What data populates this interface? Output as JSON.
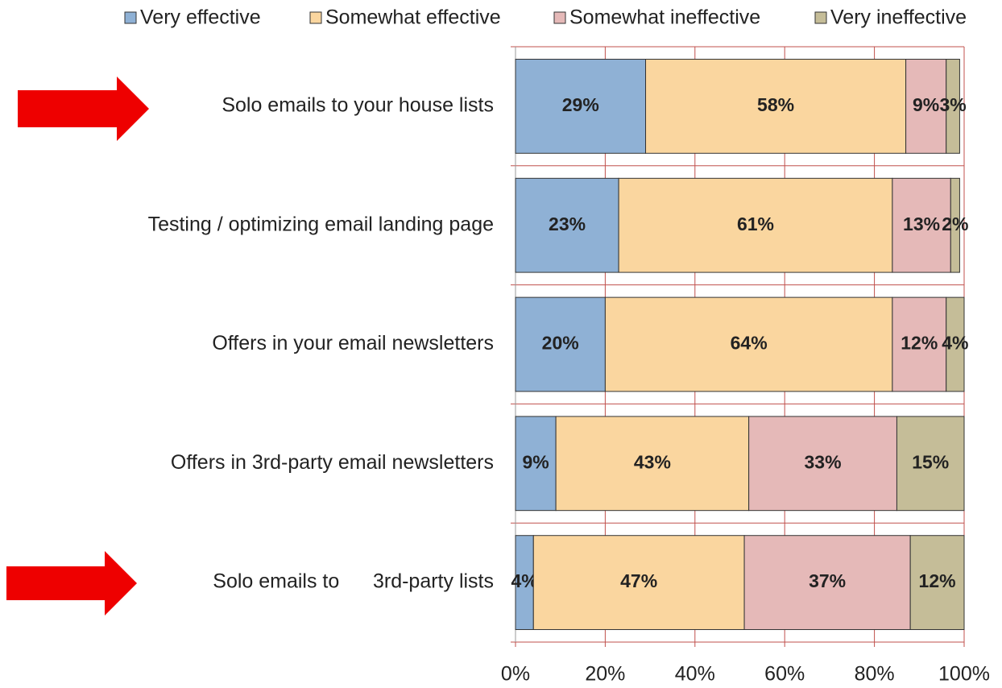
{
  "chart_data": {
    "type": "stacked-barh",
    "categories": [
      "Solo emails to your house lists",
      "Testing / optimizing email landing page",
      "Offers in your email newsletters",
      "Offers in 3rd-party email newsletters",
      "Solo emails to      3rd-party lists"
    ],
    "series": [
      {
        "name": "Very effective",
        "color": "#8fb1d5",
        "values": [
          29,
          23,
          20,
          9,
          4
        ],
        "value_labels": [
          "29%",
          "23%",
          "20%",
          "9%",
          "4%"
        ]
      },
      {
        "name": "Somewhat effective",
        "color": "#fad69f",
        "values": [
          58,
          61,
          64,
          43,
          47
        ],
        "value_labels": [
          "58%",
          "61%",
          "64%",
          "43%",
          "47%"
        ]
      },
      {
        "name": "Somewhat ineffective",
        "color": "#e5b9b8",
        "values": [
          9,
          13,
          12,
          33,
          37
        ],
        "value_labels": [
          "9%",
          "13%",
          "12%",
          "33%",
          "37%"
        ]
      },
      {
        "name": "Very ineffective",
        "color": "#c5bd98",
        "values": [
          3,
          2,
          4,
          15,
          12
        ],
        "value_labels": [
          "3%",
          "2%",
          "4%",
          "15%",
          "12%"
        ]
      }
    ],
    "xlim": [
      0,
      100
    ],
    "xticks": [
      {
        "value": 0,
        "label": "0%"
      },
      {
        "value": 20,
        "label": "20%"
      },
      {
        "value": 40,
        "label": "40%"
      },
      {
        "value": 60,
        "label": "60%"
      },
      {
        "value": 80,
        "label": "80%"
      },
      {
        "value": 100,
        "label": "100%"
      }
    ],
    "grid": true,
    "legend": "top"
  }
}
